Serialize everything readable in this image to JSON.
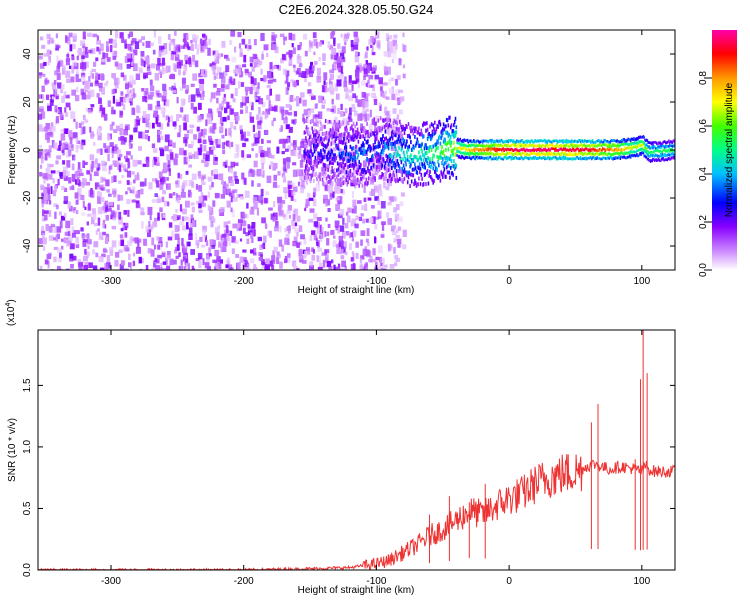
{
  "title": "C2E6.2024.328.05.50.G24",
  "chart_data": [
    {
      "type": "heatmap",
      "xlabel": "Height of straight line (km)",
      "ylabel": "Frequency (Hz)",
      "xlim": [
        -355,
        125
      ],
      "ylim": [
        -50,
        50
      ],
      "xticks": [
        -300,
        -200,
        -100,
        0,
        100
      ],
      "yticks": [
        -40,
        -20,
        0,
        20,
        40
      ],
      "colorbar": {
        "label": "Normalized spectral amplitude",
        "range": [
          0.0,
          1.0
        ],
        "ticks": [
          "0.0",
          "0.2",
          "0.4",
          "0.6",
          "0.8"
        ],
        "colors": [
          "#ffffff",
          "#cc88ff",
          "#8800ff",
          "#0000ff",
          "#00bfff",
          "#00ff88",
          "#44ff00",
          "#ffff00",
          "#ff9900",
          "#ff0000",
          "#ff00aa"
        ]
      },
      "noise_region_x": [
        -355,
        -95
      ],
      "ridge": {
        "x": [
          -155,
          -130,
          -110,
          -100,
          -90,
          -75,
          -60,
          -45,
          -30,
          -15,
          0,
          20,
          40,
          60,
          80,
          95,
          100,
          105,
          125
        ],
        "y": [
          0,
          -1,
          -2,
          1,
          0,
          -2,
          -1,
          1,
          0,
          0,
          0,
          0,
          0,
          0,
          0,
          1,
          2,
          -1,
          0
        ],
        "amplitude": [
          0.25,
          0.3,
          0.35,
          0.3,
          0.4,
          0.45,
          0.5,
          0.6,
          0.75,
          0.85,
          0.95,
          0.95,
          0.95,
          0.9,
          0.8,
          0.65,
          0.7,
          0.55,
          0.5
        ]
      }
    },
    {
      "type": "line",
      "xlabel": "Height of straight line (km)",
      "ylabel": "SNR (10 * v/v)",
      "y_multiplier": "(x10",
      "y_multiplier_exp": "4",
      "xlim": [
        -355,
        125
      ],
      "ylim": [
        0,
        1.95
      ],
      "xticks": [
        -300,
        -200,
        -100,
        0,
        100
      ],
      "yticks": [
        "0.0",
        "0.5",
        "1.0",
        "1.5"
      ],
      "series": [
        {
          "color": "#ee3333",
          "x": [
            -355,
            -300,
            -250,
            -200,
            -150,
            -120,
            -100,
            -90,
            -80,
            -70,
            -60,
            -50,
            -40,
            -30,
            -20,
            -10,
            0,
            10,
            20,
            30,
            40,
            50,
            55,
            60,
            65,
            70,
            75,
            80,
            85,
            90,
            95,
            100,
            103,
            105,
            110,
            125
          ],
          "y": [
            0.0,
            0.0,
            0.0,
            0.0,
            0.01,
            0.02,
            0.05,
            0.08,
            0.14,
            0.2,
            0.28,
            0.33,
            0.4,
            0.48,
            0.45,
            0.52,
            0.58,
            0.62,
            0.7,
            0.75,
            0.78,
            0.8,
            0.82,
            0.85,
            0.86,
            0.84,
            0.82,
            0.83,
            0.84,
            0.83,
            0.82,
            0.8,
            0.85,
            0.82,
            0.8,
            0.8
          ],
          "spikes": [
            [
              -60,
              0.45
            ],
            [
              -45,
              0.6
            ],
            [
              -30,
              0.55
            ],
            [
              -18,
              0.7
            ],
            [
              62,
              1.2
            ],
            [
              67,
              1.35
            ],
            [
              95,
              0.9
            ],
            [
              99,
              1.55
            ],
            [
              101,
              1.95
            ],
            [
              104,
              1.6
            ]
          ]
        }
      ]
    }
  ]
}
